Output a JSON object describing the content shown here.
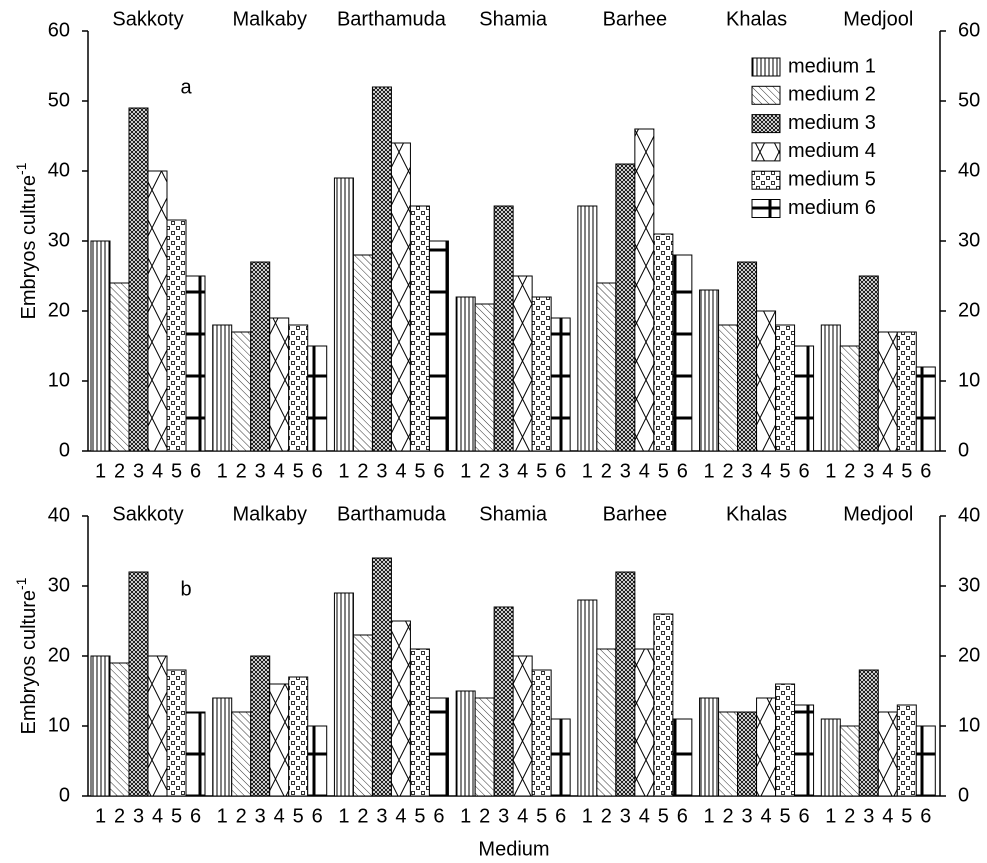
{
  "chart_data": [
    {
      "type": "bar",
      "panel_label": "a",
      "y_label": "Embryos culture",
      "y_label_sup": "-1",
      "categories": [
        "Sakkoty",
        "Malkaby",
        "Barthamuda",
        "Shamia",
        "Barhee",
        "Khalas",
        "Medjool"
      ],
      "subcategories": [
        "1",
        "2",
        "3",
        "4",
        "5",
        "6"
      ],
      "ylim": [
        0,
        60
      ],
      "yticks": [
        0,
        10,
        20,
        30,
        40,
        50,
        60
      ],
      "legend": "upper right",
      "series": [
        {
          "name": "medium 1",
          "color": "#000000",
          "pattern": "vertical",
          "values": [
            30,
            18,
            39,
            22,
            35,
            23,
            18
          ]
        },
        {
          "name": "medium 2",
          "color": "#000000",
          "pattern": "diagonal",
          "values": [
            24,
            17,
            28,
            21,
            24,
            18,
            15
          ]
        },
        {
          "name": "medium 3",
          "color": "#000000",
          "pattern": "crosshatch",
          "values": [
            49,
            27,
            52,
            35,
            41,
            27,
            25
          ]
        },
        {
          "name": "medium 4",
          "color": "#000000",
          "pattern": "bigx",
          "values": [
            40,
            19,
            44,
            25,
            46,
            20,
            17
          ]
        },
        {
          "name": "medium 5",
          "color": "#000000",
          "pattern": "squares",
          "values": [
            33,
            18,
            35,
            22,
            31,
            18,
            17
          ]
        },
        {
          "name": "medium 6",
          "color": "#000000",
          "pattern": "bands",
          "values": [
            25,
            15,
            30,
            19,
            28,
            15,
            12
          ]
        }
      ]
    },
    {
      "type": "bar",
      "panel_label": "b",
      "y_label": "Embryos culture",
      "y_label_sup": "-1",
      "x_label": "Medium",
      "categories": [
        "Sakkoty",
        "Malkaby",
        "Barthamuda",
        "Shamia",
        "Barhee",
        "Khalas",
        "Medjool"
      ],
      "subcategories": [
        "1",
        "2",
        "3",
        "4",
        "5",
        "6"
      ],
      "ylim": [
        0,
        40
      ],
      "yticks": [
        0,
        10,
        20,
        30,
        40
      ],
      "series": [
        {
          "color": "#000000",
          "pattern": "vertical",
          "values": [
            20,
            14,
            29,
            15,
            28,
            14,
            11
          ]
        },
        {
          "color": "#000000",
          "pattern": "diagonal",
          "values": [
            19,
            12,
            23,
            14,
            21,
            12,
            10
          ]
        },
        {
          "color": "#000000",
          "pattern": "crosshatch",
          "values": [
            32,
            20,
            34,
            27,
            32,
            12,
            18
          ]
        },
        {
          "color": "#000000",
          "pattern": "bigx",
          "values": [
            20,
            16,
            25,
            20,
            21,
            14,
            12
          ]
        },
        {
          "color": "#000000",
          "pattern": "squares",
          "values": [
            18,
            17,
            21,
            18,
            26,
            16,
            13
          ]
        },
        {
          "color": "#000000",
          "pattern": "bands",
          "values": [
            12,
            10,
            14,
            11,
            11,
            13,
            10
          ]
        }
      ]
    }
  ]
}
